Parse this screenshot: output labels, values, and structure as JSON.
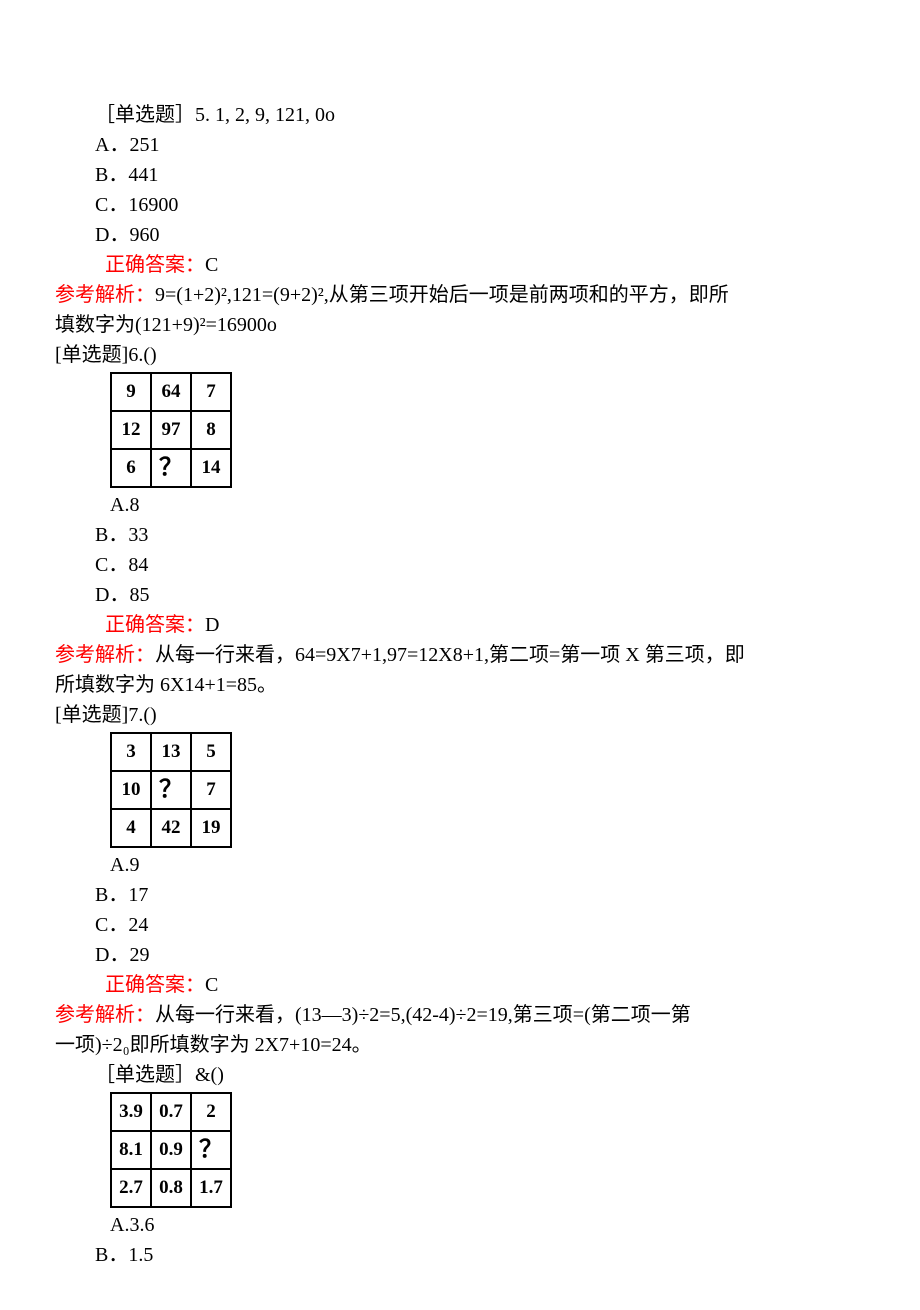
{
  "q5": {
    "prompt": "［单选题］5. 1, 2, 9, 121, 0o",
    "A": "A．251",
    "B": "B．441",
    "C": "C．16900",
    "D": "D．960",
    "answer_label": "正确答案：",
    "answer_value": "C",
    "explain_label": "参考解析：",
    "explain_text1": "9=(1+2)²,121=(9+2)²,从第三项开始后一项是前两项和的平方，即所",
    "explain_text2": "填数字为(121+9)²=16900o"
  },
  "q6": {
    "prompt": "[单选题]6.()",
    "grid": {
      "rows": [
        [
          "9",
          "64",
          "7"
        ],
        [
          "12",
          "97",
          "8"
        ],
        [
          "6",
          "？",
          "14"
        ]
      ],
      "qmark_pos": [
        2,
        1
      ]
    },
    "A": "A.8",
    "B": "B．33",
    "C": "C．84",
    "D": "D．85",
    "answer_label": "正确答案：",
    "answer_value": "D",
    "explain_label": "参考解析：",
    "explain_text1": "从每一行来看，64=9X7+1,97=12X8+1,第二项=第一项 X 第三项，即",
    "explain_text2": "所填数字为 6X14+1=85。"
  },
  "q7": {
    "prompt": "[单选题]7.()",
    "grid": {
      "rows": [
        [
          "3",
          "13",
          "5"
        ],
        [
          "10",
          "？",
          "7"
        ],
        [
          "4",
          "42",
          "19"
        ]
      ],
      "qmark_pos": [
        1,
        1
      ]
    },
    "A": "A.9",
    "B": "B．17",
    "C": "C．24",
    "D": "D．29",
    "answer_label": "正确答案：",
    "answer_value": "C",
    "explain_label": "参考解析：",
    "explain_text1": "从每一行来看，(13—3)÷2=5,(42-4)÷2=19,第三项=(第二项一第",
    "explain_text2": "一项)÷2₀即所填数字为 2X7+10=24。"
  },
  "q8": {
    "prompt": "［单选题］&()",
    "grid": {
      "rows": [
        [
          "3.9",
          "0.7",
          "2"
        ],
        [
          "8.1",
          "0.9",
          "？"
        ],
        [
          "2.7",
          "0.8",
          "1.7"
        ]
      ],
      "qmark_pos": [
        1,
        2
      ]
    },
    "A": "A.3.6",
    "B": "B．1.5"
  }
}
